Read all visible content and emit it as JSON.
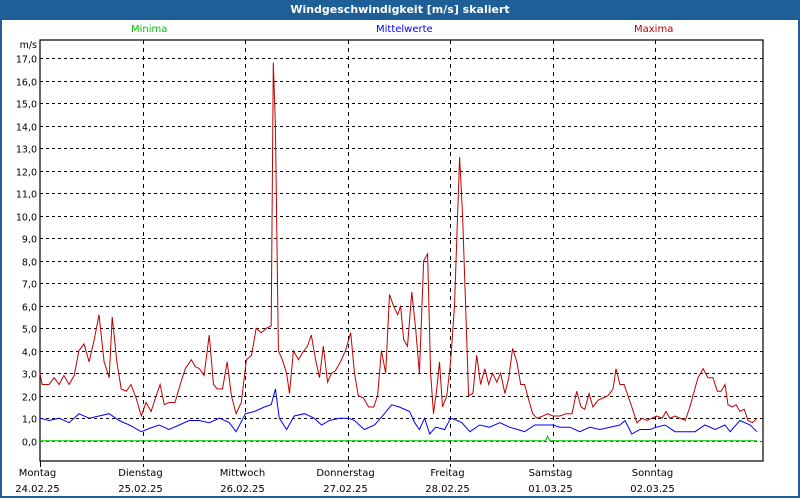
{
  "window": {
    "title": "Windgeschwindigkeit [m/s] skaliert"
  },
  "chart_data": {
    "type": "line",
    "title": "Windgeschwindigkeit [m/s] skaliert",
    "ylabel": "m/s",
    "xlabel": "",
    "ylim": [
      -0.9,
      17.8
    ],
    "xlim_hours": [
      0,
      169.2
    ],
    "grid": true,
    "legend_placement": "top",
    "yticks": [
      "0,0",
      "1,0",
      "2,0",
      "3,0",
      "4,0",
      "5,0",
      "6,0",
      "7,0",
      "8,0",
      "9,0",
      "10,0",
      "11,0",
      "12,0",
      "13,0",
      "14,0",
      "15,0",
      "16,0",
      "17,0"
    ],
    "ytick_values": [
      0,
      1,
      2,
      3,
      4,
      5,
      6,
      7,
      8,
      9,
      10,
      11,
      12,
      13,
      14,
      15,
      16,
      17
    ],
    "xticks": [
      {
        "day": "Montag",
        "date": "24.02.25",
        "hour": 0
      },
      {
        "day": "Dienstag",
        "date": "25.02.25",
        "hour": 24
      },
      {
        "day": "Mittwoch",
        "date": "26.02.25",
        "hour": 48
      },
      {
        "day": "Donnerstag",
        "date": "27.02.25",
        "hour": 72
      },
      {
        "day": "Freitag",
        "date": "28.02.25",
        "hour": 96
      },
      {
        "day": "Samstag",
        "date": "01.03.25",
        "hour": 120
      },
      {
        "day": "Sonntag",
        "date": "02.03.25",
        "hour": 144
      }
    ],
    "series": [
      {
        "name": "Minima",
        "color": "#00c000",
        "points": [
          [
            0,
            0
          ],
          [
            118.3,
            0
          ],
          [
            118.8,
            0.2
          ],
          [
            119.3,
            0
          ],
          [
            167.8,
            0
          ]
        ]
      },
      {
        "name": "Mittelwerte",
        "color": "#0000ff",
        "points": [
          [
            0,
            1.0
          ],
          [
            2.1,
            0.9
          ],
          [
            4.5,
            1.0
          ],
          [
            6.8,
            0.8
          ],
          [
            9.1,
            1.2
          ],
          [
            11.5,
            1.0
          ],
          [
            13.8,
            1.1
          ],
          [
            16.2,
            1.2
          ],
          [
            18.5,
            0.9
          ],
          [
            20.9,
            0.7
          ],
          [
            23.7,
            0.4
          ],
          [
            25.6,
            0.55
          ],
          [
            27.9,
            0.7
          ],
          [
            30.2,
            0.5
          ],
          [
            32.6,
            0.7
          ],
          [
            34.9,
            0.9
          ],
          [
            37.3,
            0.9
          ],
          [
            39.6,
            0.8
          ],
          [
            42.0,
            1.0
          ],
          [
            44.3,
            0.8
          ],
          [
            45.9,
            0.4
          ],
          [
            48.1,
            1.2
          ],
          [
            50.2,
            1.3
          ],
          [
            52.5,
            1.5
          ],
          [
            54.1,
            1.6
          ],
          [
            55.1,
            2.3
          ],
          [
            56.0,
            1.0
          ],
          [
            57.7,
            0.5
          ],
          [
            59.5,
            1.1
          ],
          [
            61.9,
            1.2
          ],
          [
            64.2,
            1.0
          ],
          [
            65.9,
            0.7
          ],
          [
            67.7,
            0.9
          ],
          [
            70.1,
            1.0
          ],
          [
            72.2,
            1.0
          ],
          [
            73.6,
            0.9
          ],
          [
            75.9,
            0.5
          ],
          [
            78.3,
            0.7
          ],
          [
            80.6,
            1.2
          ],
          [
            82.3,
            1.6
          ],
          [
            84.1,
            1.5
          ],
          [
            86.5,
            1.3
          ],
          [
            87.7,
            0.8
          ],
          [
            88.8,
            0.5
          ],
          [
            90.0,
            1.0
          ],
          [
            91.2,
            0.3
          ],
          [
            92.6,
            0.6
          ],
          [
            94.7,
            0.5
          ],
          [
            96.1,
            1.0
          ],
          [
            97.7,
            0.9
          ],
          [
            98.7,
            0.8
          ],
          [
            100.6,
            0.4
          ],
          [
            102.9,
            0.7
          ],
          [
            105.2,
            0.6
          ],
          [
            107.6,
            0.8
          ],
          [
            109.9,
            0.6
          ],
          [
            111.8,
            0.5
          ],
          [
            113.4,
            0.4
          ],
          [
            115.8,
            0.7
          ],
          [
            118.1,
            0.7
          ],
          [
            120.0,
            0.7
          ],
          [
            121.7,
            0.6
          ],
          [
            124.0,
            0.6
          ],
          [
            126.3,
            0.4
          ],
          [
            128.7,
            0.6
          ],
          [
            131.0,
            0.5
          ],
          [
            133.4,
            0.6
          ],
          [
            135.7,
            0.7
          ],
          [
            136.9,
            0.9
          ],
          [
            138.5,
            0.3
          ],
          [
            140.4,
            0.5
          ],
          [
            142.8,
            0.5
          ],
          [
            144.2,
            0.6
          ],
          [
            146.3,
            0.7
          ],
          [
            148.6,
            0.4
          ],
          [
            151.0,
            0.4
          ],
          [
            153.3,
            0.4
          ],
          [
            155.6,
            0.7
          ],
          [
            158.0,
            0.5
          ],
          [
            160.3,
            0.7
          ],
          [
            161.5,
            0.4
          ],
          [
            163.8,
            0.9
          ],
          [
            166.2,
            0.7
          ],
          [
            167.8,
            0.4
          ]
        ]
      },
      {
        "name": "Maxima",
        "color": "#c00000",
        "points": [
          [
            0,
            3.0
          ],
          [
            0.5,
            2.5
          ],
          [
            2.1,
            2.5
          ],
          [
            3.3,
            2.8
          ],
          [
            4.5,
            2.5
          ],
          [
            5.6,
            2.9
          ],
          [
            6.8,
            2.5
          ],
          [
            8.0,
            2.9
          ],
          [
            9.1,
            4.0
          ],
          [
            10.3,
            4.3
          ],
          [
            11.5,
            3.5
          ],
          [
            12.7,
            4.5
          ],
          [
            13.8,
            5.6
          ],
          [
            15.0,
            3.5
          ],
          [
            16.2,
            2.8
          ],
          [
            16.9,
            5.5
          ],
          [
            18.0,
            3.5
          ],
          [
            19.0,
            2.3
          ],
          [
            20.2,
            2.2
          ],
          [
            21.3,
            2.5
          ],
          [
            22.5,
            1.9
          ],
          [
            23.7,
            1.1
          ],
          [
            24.8,
            1.7
          ],
          [
            26.0,
            1.3
          ],
          [
            27.2,
            2.0
          ],
          [
            28.1,
            2.5
          ],
          [
            29.1,
            1.6
          ],
          [
            30.2,
            1.7
          ],
          [
            31.6,
            1.7
          ],
          [
            32.8,
            2.5
          ],
          [
            34.0,
            3.2
          ],
          [
            35.4,
            3.6
          ],
          [
            36.3,
            3.3
          ],
          [
            37.3,
            3.2
          ],
          [
            38.4,
            2.9
          ],
          [
            39.6,
            4.7
          ],
          [
            40.6,
            2.5
          ],
          [
            41.5,
            2.3
          ],
          [
            42.7,
            2.3
          ],
          [
            43.8,
            3.5
          ],
          [
            44.8,
            2.0
          ],
          [
            45.9,
            1.2
          ],
          [
            47.1,
            1.7
          ],
          [
            48.3,
            3.6
          ],
          [
            49.5,
            3.8
          ],
          [
            50.6,
            5.0
          ],
          [
            51.8,
            4.8
          ],
          [
            53.0,
            5.0
          ],
          [
            54.1,
            5.1
          ],
          [
            54.6,
            16.8
          ],
          [
            55.1,
            14.0
          ],
          [
            55.8,
            4.0
          ],
          [
            56.7,
            3.6
          ],
          [
            57.7,
            3.0
          ],
          [
            58.4,
            2.1
          ],
          [
            59.3,
            4.0
          ],
          [
            60.5,
            3.6
          ],
          [
            61.4,
            3.9
          ],
          [
            62.6,
            4.2
          ],
          [
            63.5,
            4.7
          ],
          [
            64.5,
            3.6
          ],
          [
            65.4,
            2.8
          ],
          [
            66.3,
            4.2
          ],
          [
            67.3,
            2.6
          ],
          [
            68.2,
            3.0
          ],
          [
            69.1,
            3.1
          ],
          [
            70.3,
            3.5
          ],
          [
            71.5,
            4.0
          ],
          [
            72.7,
            4.8
          ],
          [
            73.6,
            3.0
          ],
          [
            74.5,
            2.0
          ],
          [
            75.7,
            1.9
          ],
          [
            76.9,
            1.5
          ],
          [
            78.1,
            1.5
          ],
          [
            79.0,
            2.0
          ],
          [
            79.9,
            4.0
          ],
          [
            80.9,
            3.0
          ],
          [
            81.8,
            6.5
          ],
          [
            82.7,
            6.0
          ],
          [
            83.7,
            5.6
          ],
          [
            84.4,
            6.0
          ],
          [
            85.1,
            4.5
          ],
          [
            86.0,
            4.2
          ],
          [
            87.0,
            6.6
          ],
          [
            87.9,
            5.0
          ],
          [
            88.8,
            3.0
          ],
          [
            89.8,
            8.0
          ],
          [
            90.7,
            8.3
          ],
          [
            91.4,
            3.0
          ],
          [
            92.1,
            1.2
          ],
          [
            92.8,
            2.2
          ],
          [
            93.5,
            3.5
          ],
          [
            94.2,
            1.5
          ],
          [
            95.2,
            2.0
          ],
          [
            96.1,
            3.5
          ],
          [
            97.0,
            6.0
          ],
          [
            98.2,
            12.6
          ],
          [
            98.9,
            10.0
          ],
          [
            99.6,
            6.0
          ],
          [
            100.3,
            2.0
          ],
          [
            101.3,
            2.1
          ],
          [
            102.2,
            3.8
          ],
          [
            103.1,
            2.5
          ],
          [
            104.1,
            3.2
          ],
          [
            105.0,
            2.5
          ],
          [
            105.9,
            3.0
          ],
          [
            106.9,
            2.6
          ],
          [
            107.8,
            3.0
          ],
          [
            108.8,
            2.1
          ],
          [
            109.7,
            2.8
          ],
          [
            110.6,
            4.1
          ],
          [
            111.6,
            3.5
          ],
          [
            112.5,
            2.5
          ],
          [
            113.4,
            2.5
          ],
          [
            114.4,
            1.8
          ],
          [
            115.3,
            1.2
          ],
          [
            116.3,
            1.0
          ],
          [
            117.7,
            1.1
          ],
          [
            118.8,
            1.2
          ],
          [
            120.0,
            1.1
          ],
          [
            121.7,
            1.1
          ],
          [
            123.1,
            1.2
          ],
          [
            124.5,
            1.2
          ],
          [
            125.6,
            2.2
          ],
          [
            126.6,
            1.5
          ],
          [
            127.5,
            1.4
          ],
          [
            128.5,
            2.1
          ],
          [
            129.4,
            1.5
          ],
          [
            130.6,
            1.8
          ],
          [
            131.7,
            1.9
          ],
          [
            132.9,
            2.0
          ],
          [
            134.1,
            2.3
          ],
          [
            134.8,
            3.2
          ],
          [
            135.7,
            2.5
          ],
          [
            136.7,
            2.5
          ],
          [
            137.6,
            2.0
          ],
          [
            138.5,
            1.5
          ],
          [
            139.7,
            0.8
          ],
          [
            140.9,
            1.0
          ],
          [
            142.0,
            0.9
          ],
          [
            143.2,
            1.0
          ],
          [
            144.4,
            1.1
          ],
          [
            145.6,
            1.0
          ],
          [
            146.5,
            1.3
          ],
          [
            147.4,
            1.0
          ],
          [
            148.6,
            1.1
          ],
          [
            149.8,
            1.0
          ],
          [
            151.0,
            0.9
          ],
          [
            152.1,
            1.5
          ],
          [
            153.1,
            2.2
          ],
          [
            154.0,
            2.8
          ],
          [
            155.2,
            3.2
          ],
          [
            156.3,
            2.8
          ],
          [
            157.5,
            2.8
          ],
          [
            158.5,
            2.2
          ],
          [
            159.4,
            2.2
          ],
          [
            160.3,
            2.5
          ],
          [
            161.0,
            1.6
          ],
          [
            162.0,
            1.5
          ],
          [
            162.9,
            1.6
          ],
          [
            163.8,
            1.3
          ],
          [
            164.8,
            1.4
          ],
          [
            165.7,
            0.9
          ],
          [
            166.7,
            0.8
          ],
          [
            167.8,
            1.0
          ]
        ]
      }
    ]
  }
}
